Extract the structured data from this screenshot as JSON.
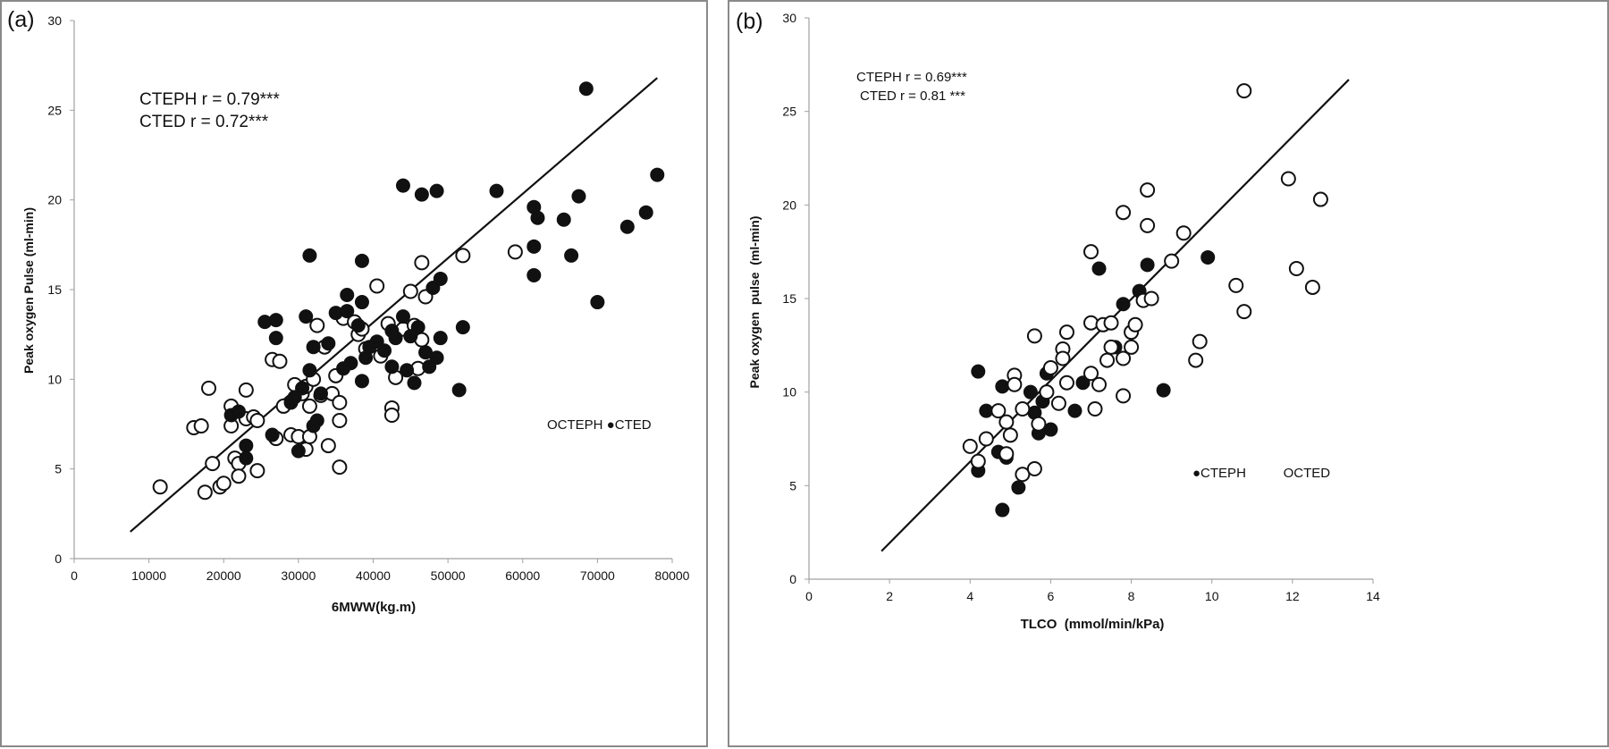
{
  "colors": {
    "frame": "#8a8a8a",
    "ink": "#111111",
    "axis": "#a0a0a0"
  },
  "chart_data": [
    {
      "type": "scatter",
      "panel_label": "(a)",
      "xlabel": "6MWW(kg.m)",
      "ylabel": "Peak oxygen Pulse (ml-min)",
      "xlim": [
        0,
        80000
      ],
      "ylim": [
        0,
        30
      ],
      "x_ticks": [
        0,
        10000,
        20000,
        30000,
        40000,
        50000,
        60000,
        70000,
        80000
      ],
      "y_ticks": [
        0,
        5,
        10,
        15,
        20,
        25,
        30
      ],
      "grid": false,
      "annotations": [
        "CTEPH r = 0.79***",
        "CTED r = 0.72***"
      ],
      "legend": {
        "position": "right",
        "text": "OCTEPH ●CTED"
      },
      "regression_line": {
        "x": [
          7500,
          78000
        ],
        "y": [
          1.5,
          26.8
        ]
      },
      "series": [
        {
          "name": "CTEPH",
          "marker": "open-circle",
          "points": [
            [
              11500,
              4.0
            ],
            [
              16000,
              7.3
            ],
            [
              17000,
              7.4
            ],
            [
              17500,
              3.7
            ],
            [
              18000,
              9.5
            ],
            [
              18500,
              5.3
            ],
            [
              19500,
              4.0
            ],
            [
              20000,
              4.2
            ],
            [
              21000,
              7.4
            ],
            [
              21000,
              8.5
            ],
            [
              21500,
              5.6
            ],
            [
              22000,
              5.3
            ],
            [
              22000,
              4.6
            ],
            [
              23000,
              9.4
            ],
            [
              23000,
              7.8
            ],
            [
              24000,
              7.9
            ],
            [
              24500,
              4.9
            ],
            [
              24500,
              7.7
            ],
            [
              26500,
              11.1
            ],
            [
              27000,
              6.7
            ],
            [
              27500,
              11.0
            ],
            [
              28000,
              8.5
            ],
            [
              29000,
              6.9
            ],
            [
              29500,
              9.7
            ],
            [
              30000,
              6.8
            ],
            [
              30500,
              9.2
            ],
            [
              31000,
              6.1
            ],
            [
              31000,
              9.6
            ],
            [
              31500,
              6.8
            ],
            [
              31500,
              8.5
            ],
            [
              32000,
              10.0
            ],
            [
              32500,
              13.0
            ],
            [
              33000,
              9.1
            ],
            [
              33500,
              11.8
            ],
            [
              34000,
              6.3
            ],
            [
              34500,
              9.2
            ],
            [
              35000,
              10.2
            ],
            [
              35500,
              5.1
            ],
            [
              35500,
              7.7
            ],
            [
              35500,
              8.7
            ],
            [
              36000,
              13.4
            ],
            [
              37500,
              13.2
            ],
            [
              38000,
              12.5
            ],
            [
              38500,
              12.8
            ],
            [
              39000,
              11.7
            ],
            [
              40500,
              15.2
            ],
            [
              41000,
              11.3
            ],
            [
              42000,
              13.1
            ],
            [
              42500,
              8.4
            ],
            [
              42500,
              8.0
            ],
            [
              43000,
              10.1
            ],
            [
              44000,
              12.8
            ],
            [
              45000,
              14.9
            ],
            [
              45500,
              13.0
            ],
            [
              46000,
              10.6
            ],
            [
              46500,
              12.2
            ],
            [
              47000,
              14.6
            ],
            [
              46500,
              16.5
            ],
            [
              52000,
              16.9
            ],
            [
              59000,
              17.1
            ]
          ]
        },
        {
          "name": "CTED",
          "marker": "filled-circle",
          "points": [
            [
              21000,
              8.0
            ],
            [
              22000,
              8.2
            ],
            [
              23000,
              6.3
            ],
            [
              23000,
              5.6
            ],
            [
              25500,
              13.2
            ],
            [
              26500,
              6.9
            ],
            [
              27000,
              12.3
            ],
            [
              27000,
              13.3
            ],
            [
              29000,
              8.7
            ],
            [
              29500,
              9.0
            ],
            [
              30000,
              6.0
            ],
            [
              30500,
              9.5
            ],
            [
              31000,
              13.5
            ],
            [
              31500,
              16.9
            ],
            [
              31500,
              10.5
            ],
            [
              32000,
              11.8
            ],
            [
              32000,
              7.4
            ],
            [
              32500,
              7.7
            ],
            [
              33000,
              9.2
            ],
            [
              34000,
              12.0
            ],
            [
              35000,
              13.7
            ],
            [
              36000,
              10.6
            ],
            [
              36500,
              14.7
            ],
            [
              36500,
              13.8
            ],
            [
              37000,
              10.9
            ],
            [
              38000,
              13.0
            ],
            [
              38500,
              14.3
            ],
            [
              38500,
              9.9
            ],
            [
              38500,
              16.6
            ],
            [
              39000,
              11.2
            ],
            [
              39500,
              11.8
            ],
            [
              40500,
              12.1
            ],
            [
              41500,
              11.6
            ],
            [
              42500,
              12.7
            ],
            [
              42500,
              10.7
            ],
            [
              43000,
              12.3
            ],
            [
              44000,
              13.5
            ],
            [
              44000,
              20.8
            ],
            [
              44500,
              10.5
            ],
            [
              45000,
              12.4
            ],
            [
              45500,
              9.8
            ],
            [
              46000,
              12.9
            ],
            [
              46500,
              20.3
            ],
            [
              47000,
              11.5
            ],
            [
              47500,
              10.7
            ],
            [
              48000,
              15.1
            ],
            [
              48500,
              20.5
            ],
            [
              48500,
              11.2
            ],
            [
              49000,
              15.6
            ],
            [
              49000,
              12.3
            ],
            [
              51500,
              9.4
            ],
            [
              52000,
              12.9
            ],
            [
              56500,
              20.5
            ],
            [
              61500,
              19.6
            ],
            [
              61500,
              17.4
            ],
            [
              62000,
              19.0
            ],
            [
              61500,
              15.8
            ],
            [
              65500,
              18.9
            ],
            [
              66500,
              16.9
            ],
            [
              67500,
              20.2
            ],
            [
              68500,
              26.2
            ],
            [
              70000,
              14.3
            ],
            [
              74000,
              18.5
            ],
            [
              76500,
              19.3
            ],
            [
              78000,
              21.4
            ]
          ]
        }
      ]
    },
    {
      "type": "scatter",
      "panel_label": "(b)",
      "xlabel": "TLCO  (mmol/min/kPa)",
      "ylabel": "Peak oxygen  pulse  (ml-min)",
      "xlim": [
        0,
        14
      ],
      "ylim": [
        0,
        30
      ],
      "x_ticks": [
        0,
        2,
        4,
        6,
        8,
        10,
        12,
        14
      ],
      "y_ticks": [
        0,
        5,
        10,
        15,
        20,
        25,
        30
      ],
      "grid": false,
      "annotations": [
        "CTEPH r = 0.69***",
        "CTED r  = 0.81 ***"
      ],
      "legend": {
        "position": "bottom-right",
        "text": "●CTEPH          OCTED"
      },
      "regression_line": {
        "x": [
          1.8,
          13.4
        ],
        "y": [
          1.5,
          26.7
        ]
      },
      "series": [
        {
          "name": "CTEPH",
          "marker": "filled-circle",
          "points": [
            [
              4.2,
              11.1
            ],
            [
              4.2,
              5.8
            ],
            [
              4.4,
              9.0
            ],
            [
              4.7,
              6.8
            ],
            [
              4.8,
              10.3
            ],
            [
              4.8,
              3.7
            ],
            [
              4.9,
              6.5
            ],
            [
              5.2,
              4.9
            ],
            [
              5.5,
              10.0
            ],
            [
              5.6,
              8.9
            ],
            [
              5.7,
              7.8
            ],
            [
              5.8,
              9.5
            ],
            [
              5.9,
              11.0
            ],
            [
              6.0,
              8.0
            ],
            [
              6.6,
              9.0
            ],
            [
              6.8,
              10.5
            ],
            [
              7.2,
              16.6
            ],
            [
              7.6,
              12.4
            ],
            [
              7.8,
              14.7
            ],
            [
              8.2,
              15.4
            ],
            [
              8.4,
              16.8
            ],
            [
              8.8,
              10.1
            ],
            [
              9.9,
              17.2
            ]
          ]
        },
        {
          "name": "CTED",
          "marker": "open-circle",
          "points": [
            [
              4.0,
              7.1
            ],
            [
              4.2,
              6.3
            ],
            [
              4.4,
              7.5
            ],
            [
              4.7,
              9.0
            ],
            [
              4.9,
              8.4
            ],
            [
              4.9,
              6.7
            ],
            [
              5.1,
              10.9
            ],
            [
              5.1,
              10.4
            ],
            [
              5.0,
              7.7
            ],
            [
              5.3,
              5.6
            ],
            [
              5.3,
              9.1
            ],
            [
              5.6,
              5.9
            ],
            [
              5.6,
              13.0
            ],
            [
              5.7,
              8.3
            ],
            [
              5.9,
              10.0
            ],
            [
              6.0,
              11.3
            ],
            [
              6.2,
              9.4
            ],
            [
              6.3,
              12.3
            ],
            [
              6.3,
              11.8
            ],
            [
              6.4,
              13.2
            ],
            [
              6.4,
              10.5
            ],
            [
              7.0,
              13.7
            ],
            [
              7.0,
              17.5
            ],
            [
              7.1,
              9.1
            ],
            [
              7.0,
              11.0
            ],
            [
              7.2,
              10.4
            ],
            [
              7.3,
              13.6
            ],
            [
              7.4,
              11.7
            ],
            [
              7.5,
              13.7
            ],
            [
              7.5,
              12.4
            ],
            [
              7.8,
              19.6
            ],
            [
              7.8,
              9.8
            ],
            [
              7.8,
              11.8
            ],
            [
              8.0,
              12.4
            ],
            [
              8.0,
              13.2
            ],
            [
              8.1,
              13.6
            ],
            [
              8.3,
              14.9
            ],
            [
              8.5,
              15.0
            ],
            [
              8.4,
              20.8
            ],
            [
              8.4,
              18.9
            ],
            [
              9.0,
              17.0
            ],
            [
              9.3,
              18.5
            ],
            [
              9.6,
              11.7
            ],
            [
              9.7,
              12.7
            ],
            [
              10.6,
              15.7
            ],
            [
              10.8,
              26.1
            ],
            [
              10.8,
              14.3
            ],
            [
              11.9,
              21.4
            ],
            [
              12.1,
              16.6
            ],
            [
              12.5,
              15.6
            ],
            [
              12.7,
              20.3
            ]
          ]
        }
      ]
    }
  ]
}
